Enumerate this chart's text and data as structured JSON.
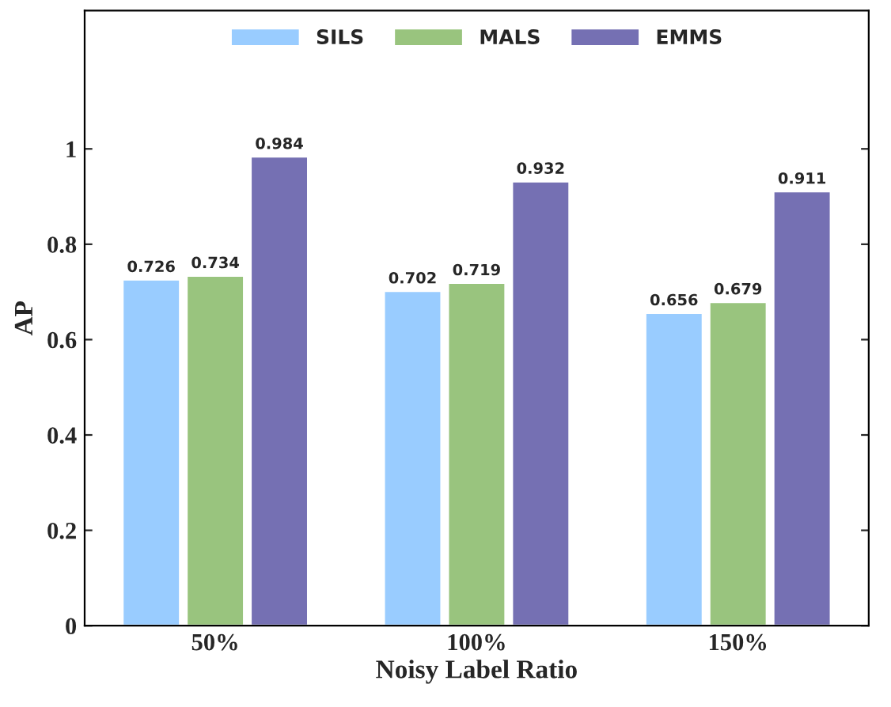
{
  "chart_data": {
    "type": "bar",
    "xlabel": "Noisy Label Ratio",
    "ylabel": "AP",
    "categories": [
      "50%",
      "100%",
      "150%"
    ],
    "series": [
      {
        "name": "SILS",
        "color": "#99ccff",
        "values": [
          0.726,
          0.702,
          0.656
        ]
      },
      {
        "name": "MALS",
        "color": "#99c47e",
        "values": [
          0.734,
          0.719,
          0.679
        ]
      },
      {
        "name": "EMMS",
        "color": "#7570b3",
        "values": [
          0.984,
          0.932,
          0.911
        ]
      }
    ],
    "ylim": [
      0,
      1.29
    ],
    "yticks": [
      0,
      0.2,
      0.4,
      0.6,
      0.8,
      1
    ],
    "data_labels": true,
    "legend": "top",
    "grid": false
  }
}
